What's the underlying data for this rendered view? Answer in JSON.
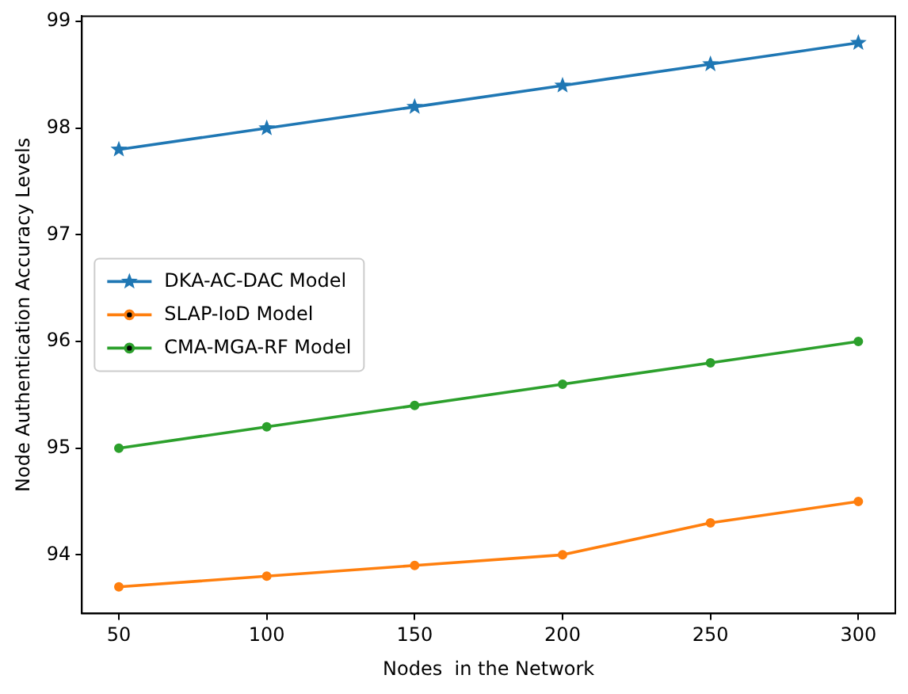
{
  "chart_data": {
    "type": "line",
    "xlabel": "Nodes  in the Network",
    "ylabel": "Node Authentication Accuracy Levels",
    "x": [
      50,
      100,
      150,
      200,
      250,
      300
    ],
    "series": [
      {
        "name": "DKA-AC-DAC Model",
        "color": "#1f77b4",
        "marker": "star",
        "values": [
          97.8,
          98.0,
          98.2,
          98.4,
          98.6,
          98.8
        ]
      },
      {
        "name": "SLAP-IoD Model",
        "color": "#ff7f0e",
        "marker": "circle",
        "values": [
          93.7,
          93.8,
          93.9,
          94.0,
          94.3,
          94.5
        ]
      },
      {
        "name": "CMA-MGA-RF Model",
        "color": "#2ca02c",
        "marker": "circle",
        "values": [
          95.0,
          95.2,
          95.4,
          95.6,
          95.8,
          96.0
        ]
      }
    ],
    "xlim": [
      37.5,
      312.5
    ],
    "xticks": [
      50,
      100,
      150,
      200,
      250,
      300
    ],
    "ylim": [
      93.45,
      99.05
    ],
    "yticks": [
      94,
      95,
      96,
      97,
      98,
      99
    ],
    "grid": false,
    "legend": "center left",
    "line_style": "solid"
  }
}
